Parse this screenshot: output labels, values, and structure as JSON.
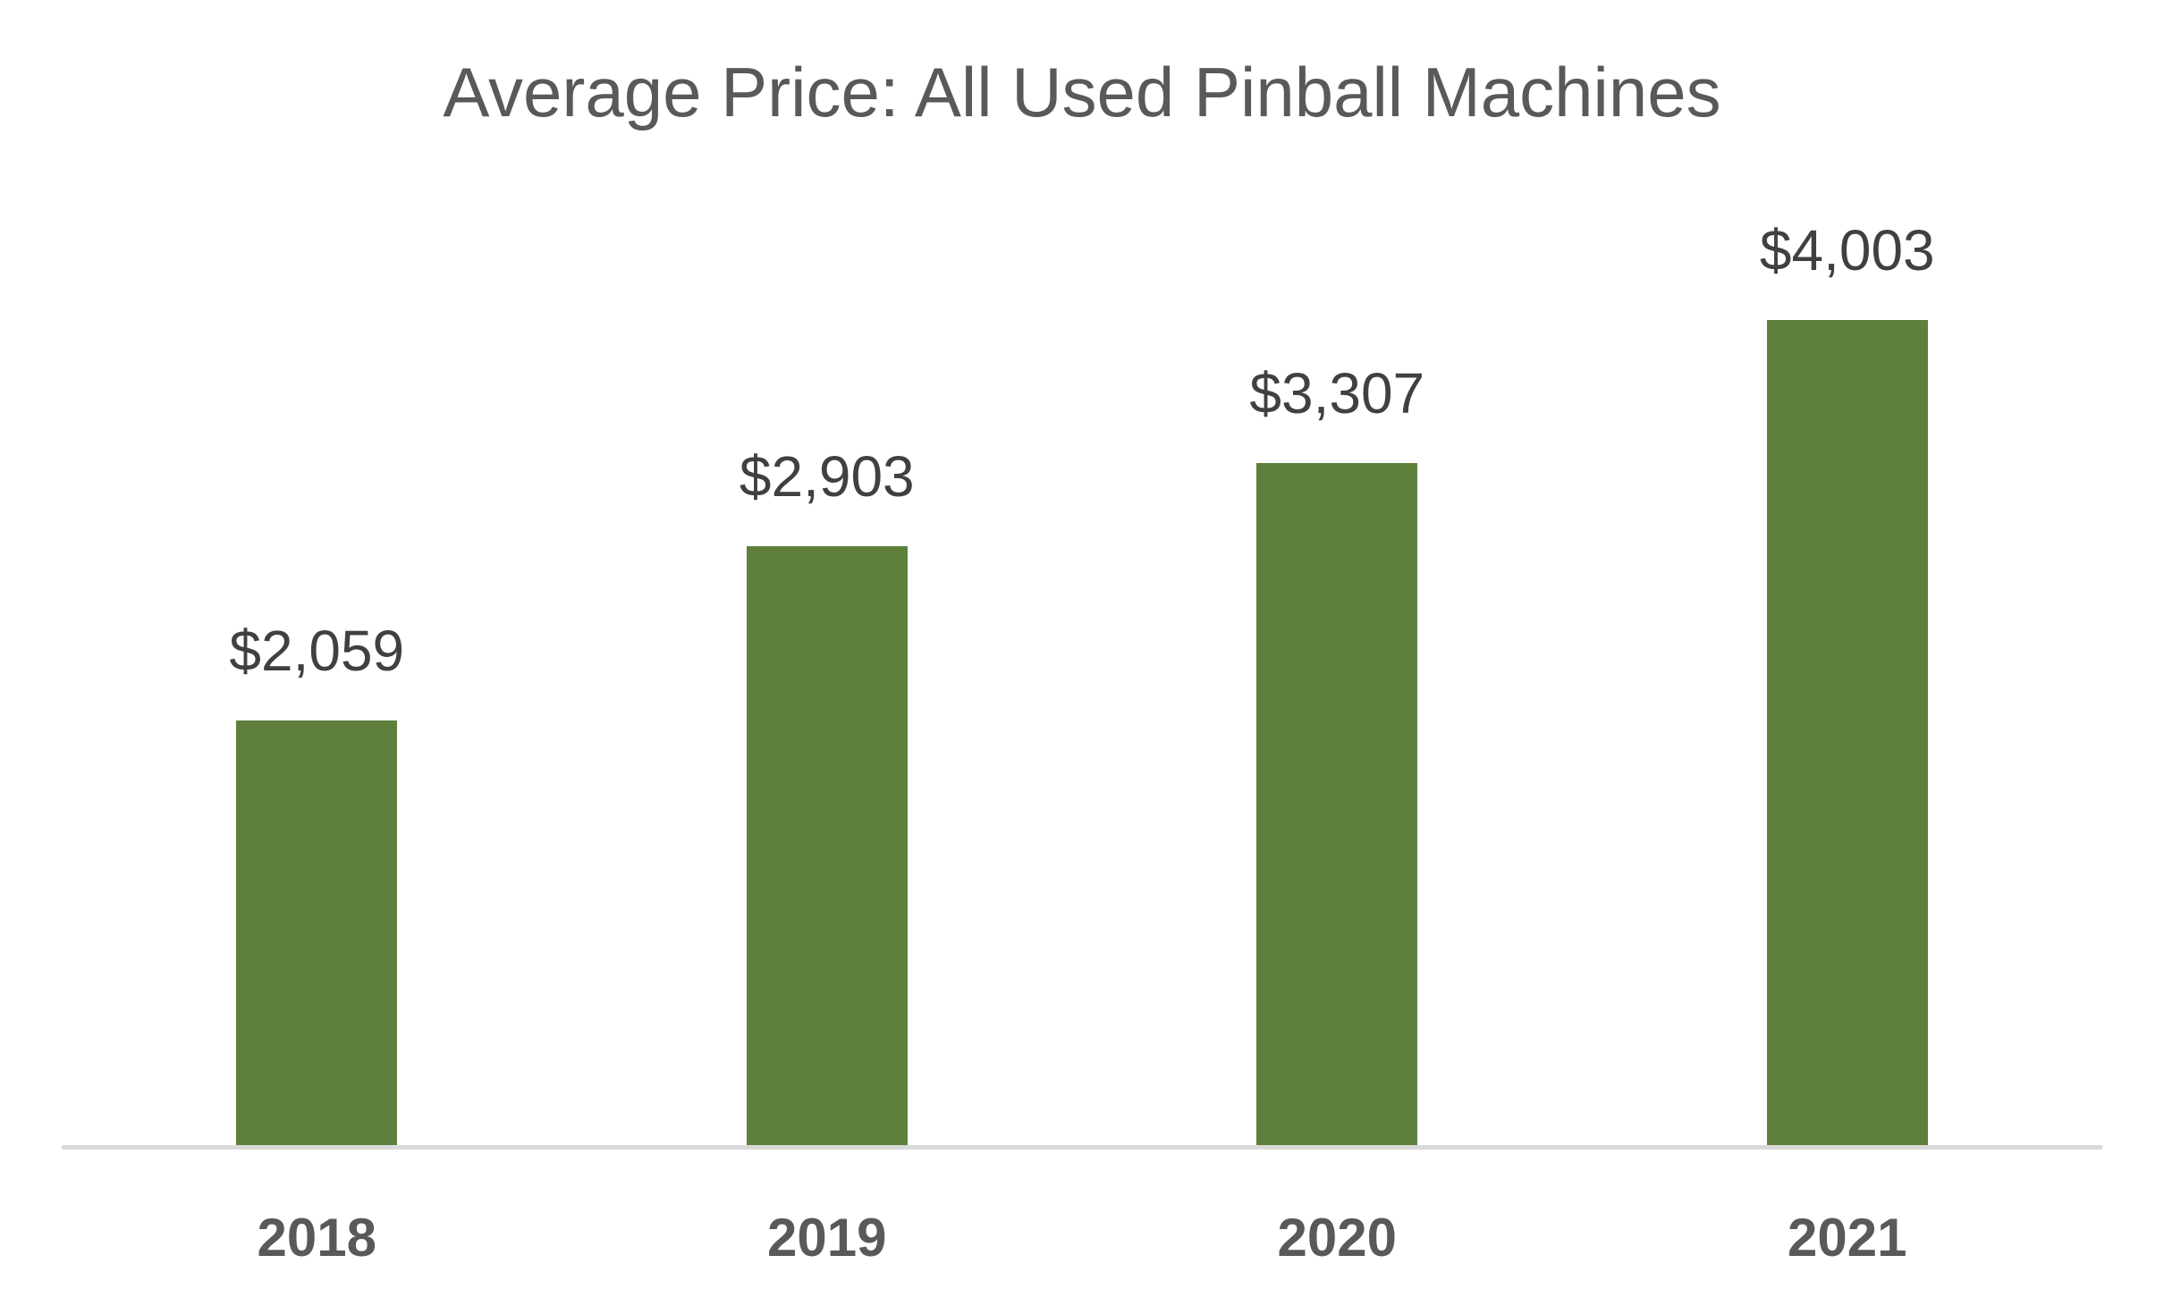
{
  "chart_data": {
    "type": "bar",
    "title": "Average Price: All Used Pinball Machines",
    "categories": [
      "2018",
      "2019",
      "2020",
      "2021"
    ],
    "values": [
      2059,
      2903,
      3307,
      4003
    ],
    "data_labels": [
      "$2,059",
      "$2,903",
      "$3,307",
      "$4,003"
    ],
    "xlabel": "",
    "ylabel": "",
    "ylim": [
      0,
      4500
    ],
    "grid": false,
    "legend": "none",
    "bar_color": "#5e803c"
  }
}
